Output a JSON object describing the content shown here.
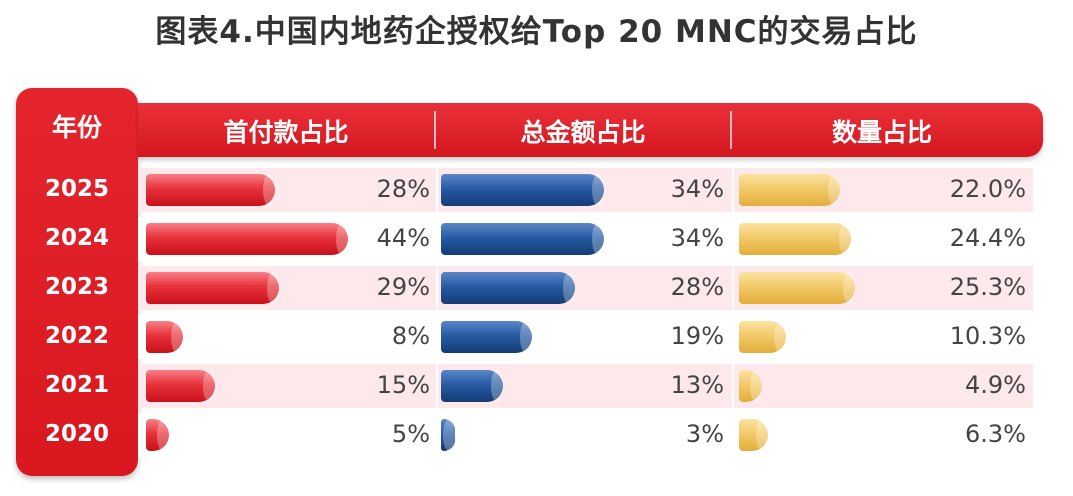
{
  "title": "图表4.中国内地药企授权给Top 20 MNC的交易占比",
  "chart_data": {
    "type": "bar",
    "orientation": "horizontal",
    "year_header": "年份",
    "categories": [
      "2025",
      "2024",
      "2023",
      "2022",
      "2021",
      "2020"
    ],
    "series": [
      {
        "name": "首付款占比",
        "values": [
          28,
          44,
          29,
          8,
          15,
          5
        ],
        "labels": [
          "28%",
          "44%",
          "29%",
          "8%",
          "15%",
          "5%"
        ],
        "color": "#e32a33"
      },
      {
        "name": "总金额占比",
        "values": [
          34,
          34,
          28,
          19,
          13,
          3
        ],
        "labels": [
          "34%",
          "34%",
          "28%",
          "19%",
          "13%",
          "3%"
        ],
        "color": "#1f4f96"
      },
      {
        "name": "数量占比",
        "values": [
          22.0,
          24.4,
          25.3,
          10.3,
          4.9,
          6.3
        ],
        "labels": [
          "22.0%",
          "24.4%",
          "25.3%",
          "10.3%",
          "4.9%",
          "6.3%"
        ],
        "color": "#f0c45a"
      }
    ]
  }
}
